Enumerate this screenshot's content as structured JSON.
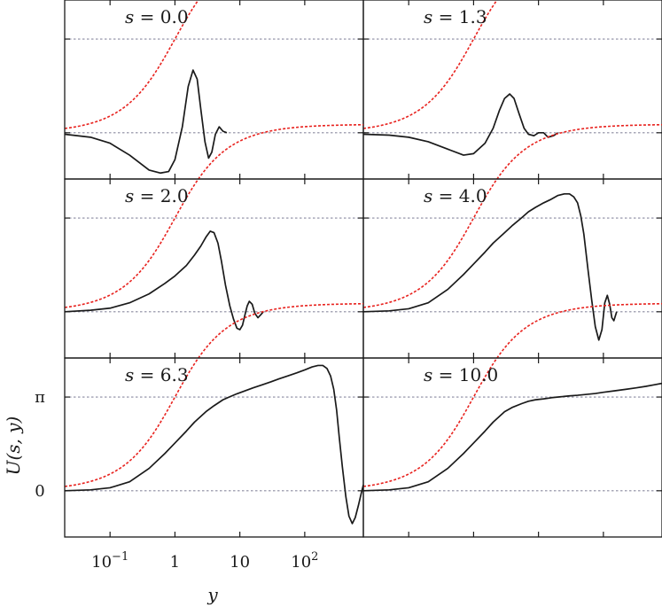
{
  "chart_data": {
    "type": "line",
    "ylabel": "U(s, y)",
    "xlabel": "y",
    "x_scale": "log",
    "xlim": [
      0.02,
      800
    ],
    "x_ticks": [
      {
        "value": 0.1,
        "mant": "10",
        "exp": "−1"
      },
      {
        "value": 1,
        "mant": "1",
        "exp": ""
      },
      {
        "value": 10,
        "mant": "10",
        "exp": ""
      },
      {
        "value": 100,
        "mant": "10",
        "exp": "2"
      }
    ],
    "y_ticks": [
      {
        "value": 0,
        "label": "0"
      },
      {
        "value": 3.14159,
        "label": "π"
      }
    ],
    "ylim": [
      -1.55,
      4.45
    ],
    "reference_lines": [
      0,
      3.14159
    ],
    "colors": {
      "numerical": "#1a1a1a",
      "kink": "#e8231f",
      "reference": "#8a8aa0",
      "frame": "#1a1a1a"
    },
    "panels": [
      {
        "label": "s = 0.0",
        "s": 0.0,
        "numerical": {
          "x": [
            0.02,
            0.05,
            0.1,
            0.2,
            0.4,
            0.6,
            0.8,
            1.0,
            1.3,
            1.6,
            1.9,
            2.2,
            2.5,
            2.9,
            3.3,
            3.7,
            4.2,
            4.8,
            5.5,
            6.3
          ],
          "y": [
            -0.05,
            -0.15,
            -0.35,
            -0.75,
            -1.25,
            -1.35,
            -1.3,
            -0.9,
            0.2,
            1.55,
            2.1,
            1.8,
            0.8,
            -0.3,
            -0.85,
            -0.65,
            -0.05,
            0.2,
            0.05,
            0.0
          ]
        }
      },
      {
        "label": "s = 1.3",
        "s": 1.3,
        "numerical": {
          "x": [
            0.02,
            0.05,
            0.1,
            0.2,
            0.4,
            0.7,
            1.0,
            1.5,
            2.0,
            2.5,
            3.0,
            3.6,
            4.2,
            5.0,
            6.0,
            7.0,
            8.5,
            10,
            12,
            14,
            17,
            20
          ],
          "y": [
            -0.05,
            -0.08,
            -0.15,
            -0.3,
            -0.55,
            -0.75,
            -0.7,
            -0.35,
            0.15,
            0.75,
            1.15,
            1.3,
            1.15,
            0.65,
            0.15,
            -0.05,
            -0.1,
            0.0,
            0.0,
            -0.15,
            -0.1,
            0.0
          ]
        }
      },
      {
        "label": "s = 2.0",
        "s": 2.0,
        "numerical": {
          "x": [
            0.02,
            0.05,
            0.1,
            0.2,
            0.4,
            0.7,
            1.0,
            1.5,
            2.0,
            2.5,
            3.0,
            3.5,
            4.0,
            4.6,
            5.2,
            6.0,
            7.0,
            8.0,
            9.0,
            10,
            11,
            12,
            13,
            14,
            15.5,
            17,
            19,
            21,
            23
          ],
          "y": [
            0.0,
            0.05,
            0.12,
            0.3,
            0.6,
            0.95,
            1.2,
            1.55,
            1.9,
            2.2,
            2.5,
            2.7,
            2.65,
            2.3,
            1.7,
            0.9,
            0.2,
            -0.25,
            -0.55,
            -0.6,
            -0.45,
            -0.1,
            0.2,
            0.35,
            0.25,
            -0.05,
            -0.2,
            -0.1,
            0.0
          ]
        }
      },
      {
        "label": "s = 4.0",
        "s": 4.0,
        "numerical": {
          "x": [
            0.02,
            0.05,
            0.1,
            0.2,
            0.4,
            0.7,
            1.0,
            1.5,
            2.0,
            3.0,
            4.0,
            5.5,
            7.0,
            9.0,
            12,
            15,
            20,
            25,
            30,
            35,
            40,
            45,
            50,
            58,
            66,
            75,
            85,
            95,
            105,
            115,
            125,
            135,
            145,
            160
          ],
          "y": [
            0.0,
            0.03,
            0.1,
            0.3,
            0.75,
            1.25,
            1.6,
            2.0,
            2.3,
            2.65,
            2.9,
            3.15,
            3.35,
            3.5,
            3.65,
            3.75,
            3.9,
            3.95,
            3.95,
            3.85,
            3.65,
            3.2,
            2.6,
            1.4,
            0.4,
            -0.5,
            -0.95,
            -0.6,
            0.3,
            0.55,
            0.25,
            -0.2,
            -0.3,
            0.0
          ]
        }
      },
      {
        "label": "s = 6.3",
        "s": 6.3,
        "numerical": {
          "x": [
            0.02,
            0.05,
            0.1,
            0.2,
            0.4,
            0.7,
            1.0,
            1.5,
            2.0,
            3.0,
            4.0,
            5.5,
            7.0,
            9.0,
            12,
            16,
            22,
            30,
            40,
            55,
            75,
            100,
            130,
            160,
            190,
            220,
            250,
            280,
            310,
            340,
            380,
            430,
            480,
            540,
            600,
            670,
            740,
            800
          ],
          "y": [
            0.0,
            0.03,
            0.1,
            0.3,
            0.75,
            1.25,
            1.6,
            2.0,
            2.3,
            2.65,
            2.85,
            3.05,
            3.15,
            3.25,
            3.35,
            3.45,
            3.55,
            3.65,
            3.75,
            3.85,
            3.95,
            4.05,
            4.15,
            4.2,
            4.2,
            4.1,
            3.85,
            3.4,
            2.7,
            1.8,
            0.8,
            -0.2,
            -0.85,
            -1.1,
            -0.9,
            -0.5,
            -0.1,
            0.2
          ]
        }
      },
      {
        "label": "s = 10.0",
        "s": 10.0,
        "numerical": {
          "x": [
            0.02,
            0.05,
            0.1,
            0.2,
            0.4,
            0.7,
            1.0,
            1.5,
            2.0,
            3.0,
            4.0,
            5.5,
            7.0,
            9.0,
            12,
            16,
            22,
            30,
            40,
            55,
            75,
            100,
            150,
            220,
            320,
            450,
            600,
            800
          ],
          "y": [
            0.0,
            0.03,
            0.1,
            0.3,
            0.75,
            1.25,
            1.6,
            2.0,
            2.3,
            2.65,
            2.8,
            2.92,
            3.0,
            3.05,
            3.08,
            3.12,
            3.15,
            3.18,
            3.2,
            3.23,
            3.26,
            3.3,
            3.35,
            3.4,
            3.45,
            3.5,
            3.55,
            3.6
          ]
        }
      }
    ]
  }
}
